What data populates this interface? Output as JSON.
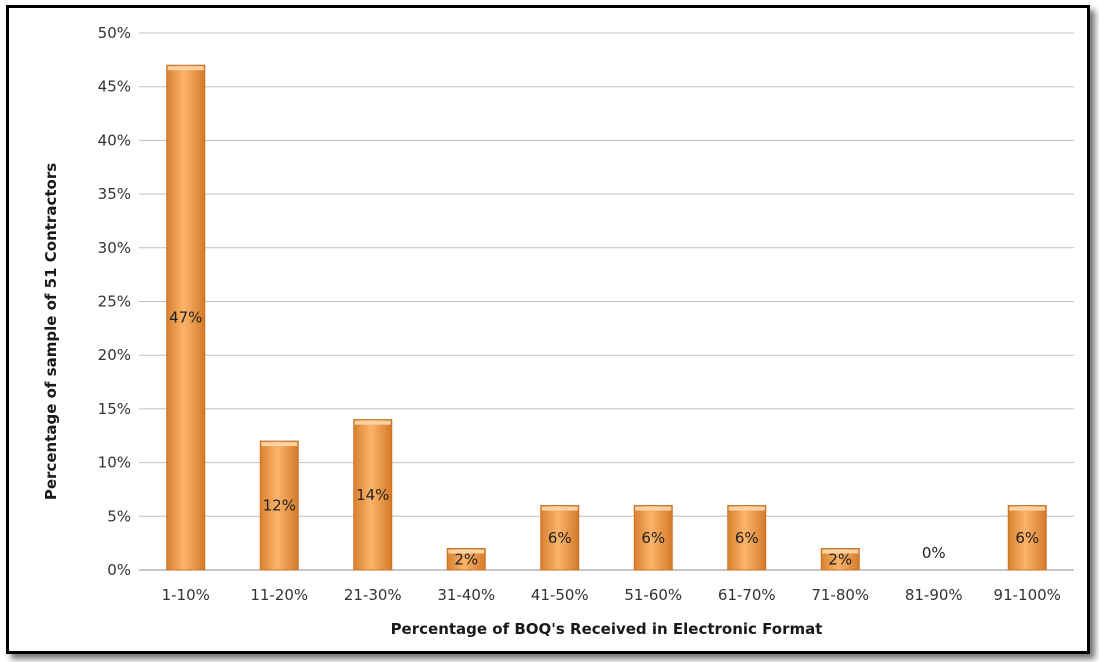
{
  "chart_data": {
    "type": "bar",
    "categories": [
      "1-10%",
      "11-20%",
      "21-30%",
      "31-40%",
      "41-50%",
      "51-60%",
      "61-70%",
      "71-80%",
      "81-90%",
      "91-100%"
    ],
    "values": [
      47,
      12,
      14,
      2,
      6,
      6,
      6,
      2,
      0,
      6
    ],
    "data_labels": [
      "47%",
      "12%",
      "14%",
      "2%",
      "6%",
      "6%",
      "6%",
      "2%",
      "0%",
      "6%"
    ],
    "xlabel": "Percentage of BOQ's Received in Electronic Format",
    "ylabel": "Percentage of sample of 51 Contractors",
    "ylim": [
      0,
      50
    ],
    "yticks": [
      "0%",
      "5%",
      "10%",
      "15%",
      "20%",
      "25%",
      "30%",
      "35%",
      "40%",
      "45%",
      "50%"
    ],
    "grid": true,
    "legend": "none",
    "colors": {
      "bar": "#f5a04e",
      "bar_dark": "#c97223",
      "bar_light": "#fcd2a2",
      "grid": "#bfbfbf"
    }
  }
}
